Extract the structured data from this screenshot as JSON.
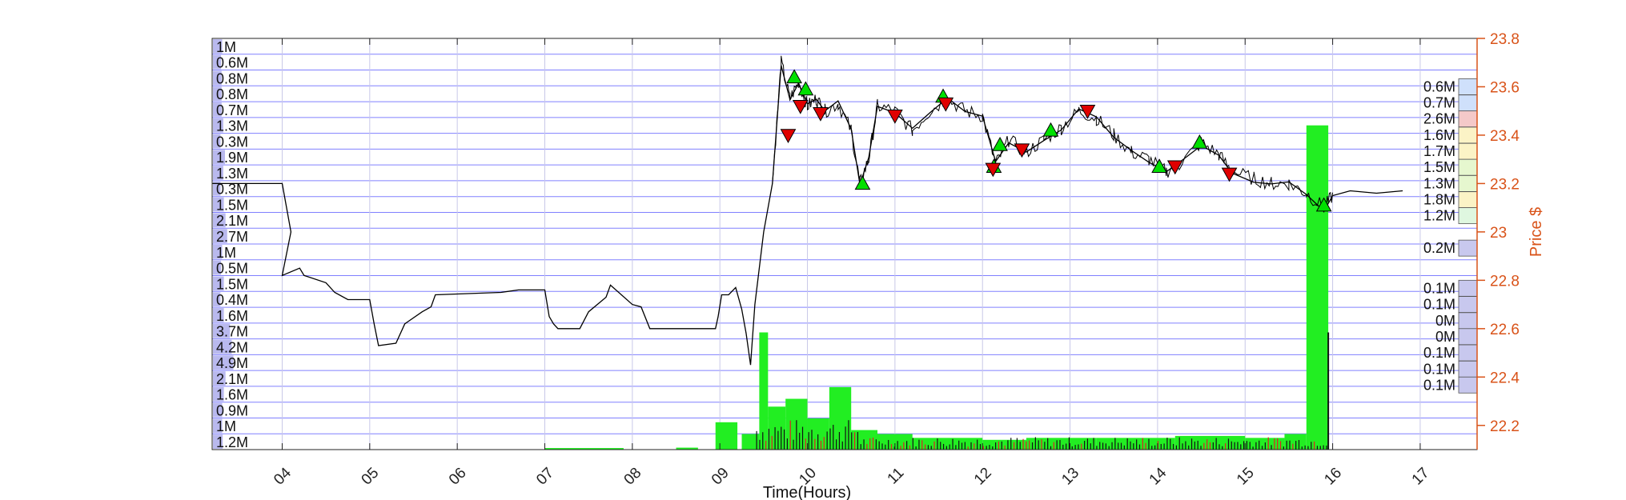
{
  "chart_data": {
    "type": "line",
    "xlabel": "Time(Hours)",
    "ylabel": "Price $",
    "x_ticks": [
      "04",
      "05",
      "06",
      "07",
      "08",
      "09",
      "10",
      "11",
      "12",
      "13",
      "14",
      "15",
      "16",
      "17"
    ],
    "y_ticks": [
      "22.2",
      "22.4",
      "22.6",
      "22.8",
      "23",
      "23.2",
      "23.4",
      "23.6",
      "23.8"
    ],
    "ylim": [
      22.1,
      23.8
    ],
    "xlim": [
      3.2,
      17.65
    ],
    "colors": {
      "price_axis": "#d95319",
      "grid_h": "#8080ff",
      "grid_v": "#c8c8e8",
      "buy_marker": "#00e000",
      "sell_marker": "#e00000",
      "volume_bar": "#22ee22",
      "volume_sell": "#dd2222"
    },
    "left_volume_labels": [
      "1M",
      "0.6M",
      "0.8M",
      "0.8M",
      "0.7M",
      "1.3M",
      "0.3M",
      "1.9M",
      "1.3M",
      "0.3M",
      "1.5M",
      "2.1M",
      "2.7M",
      "1M",
      "0.5M",
      "1.5M",
      "0.4M",
      "1.6M",
      "3.7M",
      "4.2M",
      "4.9M",
      "2.1M",
      "1.6M",
      "0.9M",
      "1M",
      "1.2M"
    ],
    "left_volume_fraction": [
      0.05,
      0.03,
      0.04,
      0.04,
      0.04,
      0.07,
      0.02,
      0.1,
      0.07,
      0.02,
      0.08,
      0.11,
      0.14,
      0.05,
      0.03,
      0.08,
      0.02,
      0.08,
      0.19,
      0.22,
      0.25,
      0.11,
      0.08,
      0.05,
      0.05,
      0.06
    ],
    "right_volume_profile": [
      {
        "price": 23.6,
        "label": "0.6M",
        "color": "#cfe0fb"
      },
      {
        "price": 23.533,
        "label": "0.7M",
        "color": "#cfe0fb"
      },
      {
        "price": 23.467,
        "label": "2.6M",
        "color": "#f4c9c9"
      },
      {
        "price": 23.4,
        "label": "1.6M",
        "color": "#fbf3c6"
      },
      {
        "price": 23.333,
        "label": "1.7M",
        "color": "#fbf3c6"
      },
      {
        "price": 23.267,
        "label": "1.5M",
        "color": "#e6f7cf"
      },
      {
        "price": 23.2,
        "label": "1.3M",
        "color": "#e6f7cf"
      },
      {
        "price": 23.133,
        "label": "1.8M",
        "color": "#fbf3c6"
      },
      {
        "price": 23.067,
        "label": "1.2M",
        "color": "#dff7e0"
      },
      {
        "price": 22.933,
        "label": "0.2M",
        "color": "#c8c8ee"
      },
      {
        "price": 22.767,
        "label": "0.1M",
        "color": "#c8c8ee"
      },
      {
        "price": 22.7,
        "label": "0.1M",
        "color": "#c8c8ee"
      },
      {
        "price": 22.633,
        "label": "0M",
        "color": "#c8c8ee"
      },
      {
        "price": 22.567,
        "label": "0M",
        "color": "#c8c8ee"
      },
      {
        "price": 22.5,
        "label": "0.1M",
        "color": "#c8c8ee"
      },
      {
        "price": 22.433,
        "label": "0.1M",
        "color": "#c8c8ee"
      },
      {
        "price": 22.367,
        "label": "0.1M",
        "color": "#c8c8ee"
      }
    ],
    "price_series": [
      [
        3.2,
        23.2
      ],
      [
        4.0,
        23.2
      ],
      [
        4.1,
        23.0
      ],
      [
        4.0,
        22.82
      ],
      [
        4.2,
        22.85
      ],
      [
        4.25,
        22.82
      ],
      [
        4.5,
        22.79
      ],
      [
        4.6,
        22.75
      ],
      [
        4.75,
        22.72
      ],
      [
        5.0,
        22.72
      ],
      [
        5.05,
        22.62
      ],
      [
        5.1,
        22.53
      ],
      [
        5.3,
        22.54
      ],
      [
        5.4,
        22.62
      ],
      [
        5.6,
        22.67
      ],
      [
        5.7,
        22.69
      ],
      [
        5.75,
        22.74
      ],
      [
        6.5,
        22.75
      ],
      [
        6.7,
        22.76
      ],
      [
        7.0,
        22.76
      ],
      [
        7.05,
        22.65
      ],
      [
        7.1,
        22.62
      ],
      [
        7.15,
        22.6
      ],
      [
        7.4,
        22.6
      ],
      [
        7.5,
        22.67
      ],
      [
        7.6,
        22.7
      ],
      [
        7.7,
        22.73
      ],
      [
        7.75,
        22.78
      ],
      [
        8.0,
        22.7
      ],
      [
        8.1,
        22.69
      ],
      [
        8.2,
        22.6
      ],
      [
        8.95,
        22.6
      ],
      [
        8.98,
        22.65
      ],
      [
        9.02,
        22.74
      ],
      [
        9.1,
        22.74
      ],
      [
        9.18,
        22.77
      ],
      [
        9.25,
        22.68
      ],
      [
        9.3,
        22.58
      ],
      [
        9.35,
        22.45
      ],
      [
        9.4,
        22.7
      ],
      [
        9.5,
        23.0
      ],
      [
        9.6,
        23.2
      ],
      [
        9.7,
        23.7
      ],
      [
        9.8,
        23.55
      ],
      [
        9.9,
        23.62
      ],
      [
        10.0,
        23.52
      ],
      [
        10.1,
        23.55
      ],
      [
        10.2,
        23.5
      ],
      [
        10.35,
        23.53
      ],
      [
        10.5,
        23.42
      ],
      [
        10.6,
        23.2
      ],
      [
        10.7,
        23.3
      ],
      [
        10.8,
        23.52
      ],
      [
        11.0,
        23.5
      ],
      [
        11.2,
        23.42
      ],
      [
        11.4,
        23.5
      ],
      [
        11.6,
        23.55
      ],
      [
        11.8,
        23.5
      ],
      [
        12.0,
        23.48
      ],
      [
        12.15,
        23.28
      ],
      [
        12.3,
        23.38
      ],
      [
        12.5,
        23.33
      ],
      [
        12.7,
        23.38
      ],
      [
        12.9,
        23.43
      ],
      [
        13.1,
        23.5
      ],
      [
        13.3,
        23.47
      ],
      [
        13.5,
        23.4
      ],
      [
        13.7,
        23.33
      ],
      [
        13.9,
        23.3
      ],
      [
        14.1,
        23.25
      ],
      [
        14.25,
        23.28
      ],
      [
        14.5,
        23.37
      ],
      [
        14.7,
        23.32
      ],
      [
        14.85,
        23.25
      ],
      [
        15.1,
        23.22
      ],
      [
        15.3,
        23.2
      ],
      [
        15.5,
        23.2
      ],
      [
        15.7,
        23.16
      ],
      [
        15.9,
        23.1
      ],
      [
        16.0,
        23.15
      ],
      [
        16.2,
        23.17
      ],
      [
        16.5,
        23.16
      ],
      [
        16.8,
        23.17
      ]
    ],
    "buy_markers": [
      [
        9.85,
        23.64
      ],
      [
        9.98,
        23.59
      ],
      [
        10.63,
        23.2
      ],
      [
        11.55,
        23.56
      ],
      [
        12.13,
        23.27
      ],
      [
        12.2,
        23.36
      ],
      [
        12.78,
        23.42
      ],
      [
        14.02,
        23.27
      ],
      [
        14.48,
        23.37
      ],
      [
        15.9,
        23.11
      ]
    ],
    "sell_markers": [
      [
        9.78,
        23.4
      ],
      [
        9.92,
        23.52
      ],
      [
        10.15,
        23.49
      ],
      [
        11.0,
        23.48
      ],
      [
        11.58,
        23.53
      ],
      [
        12.12,
        23.26
      ],
      [
        12.45,
        23.34
      ],
      [
        13.2,
        23.5
      ],
      [
        14.2,
        23.27
      ],
      [
        14.82,
        23.24
      ]
    ],
    "volume_bars": [
      {
        "x0": 7.0,
        "x1": 7.9,
        "v": 0.004
      },
      {
        "x0": 8.5,
        "x1": 8.75,
        "v": 0.005
      },
      {
        "x0": 8.95,
        "x1": 9.2,
        "v": 0.07
      },
      {
        "x0": 9.25,
        "x1": 9.45,
        "v": 0.04
      },
      {
        "x0": 9.45,
        "x1": 9.55,
        "v": 0.3
      },
      {
        "x0": 9.55,
        "x1": 9.75,
        "v": 0.11
      },
      {
        "x0": 9.75,
        "x1": 10.0,
        "v": 0.13
      },
      {
        "x0": 10.0,
        "x1": 10.25,
        "v": 0.08
      },
      {
        "x0": 10.25,
        "x1": 10.5,
        "v": 0.16
      },
      {
        "x0": 10.5,
        "x1": 10.8,
        "v": 0.05
      },
      {
        "x0": 10.8,
        "x1": 11.2,
        "v": 0.04
      },
      {
        "x0": 11.2,
        "x1": 12.0,
        "v": 0.03
      },
      {
        "x0": 12.0,
        "x1": 12.5,
        "v": 0.025
      },
      {
        "x0": 12.5,
        "x1": 13.3,
        "v": 0.03
      },
      {
        "x0": 13.3,
        "x1": 14.2,
        "v": 0.03
      },
      {
        "x0": 14.2,
        "x1": 15.0,
        "v": 0.035
      },
      {
        "x0": 15.0,
        "x1": 15.45,
        "v": 0.03
      },
      {
        "x0": 15.45,
        "x1": 15.7,
        "v": 0.04
      },
      {
        "x0": 15.7,
        "x1": 15.95,
        "v": 0.83
      }
    ]
  }
}
